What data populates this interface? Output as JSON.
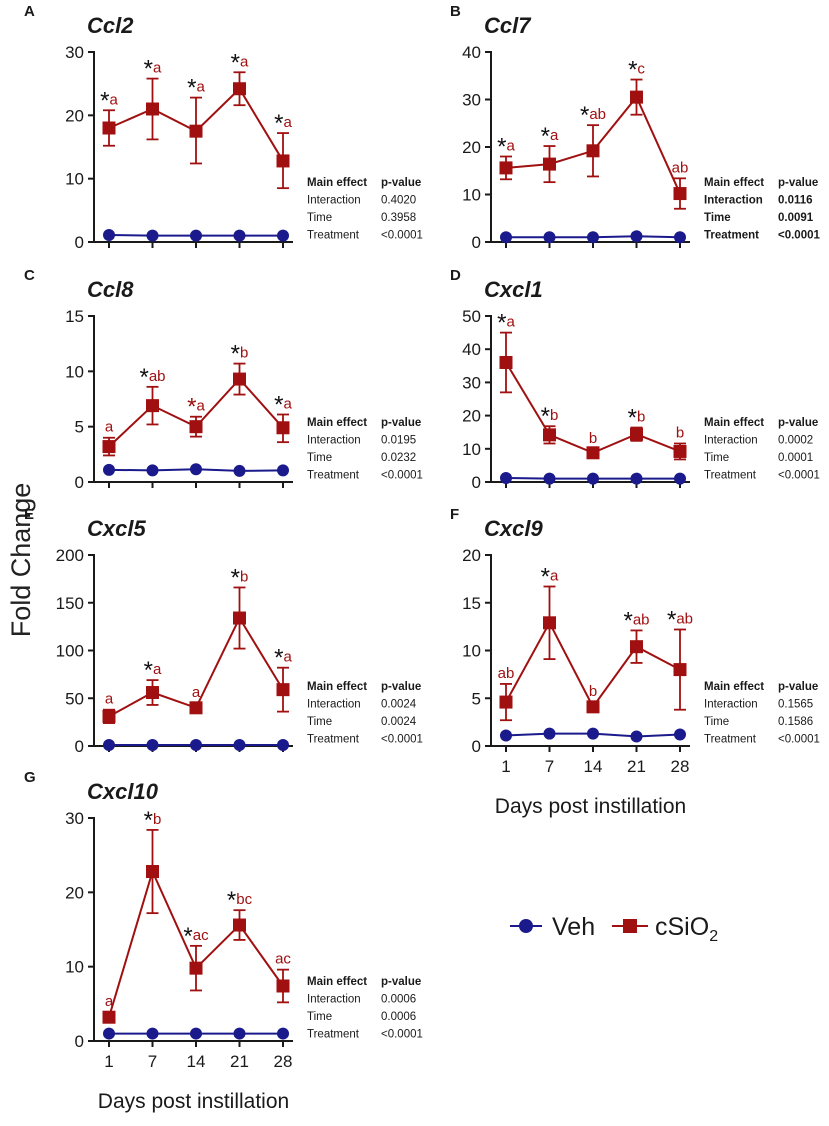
{
  "figure": {
    "ylabel": "Fold Change",
    "xlabel": "Days post instillation",
    "legend": [
      {
        "name": "Veh",
        "color": "#1a1a8c",
        "marker": "circle"
      },
      {
        "name": "cSiO",
        "subscript": "2",
        "color": "#a01010",
        "marker": "square"
      }
    ],
    "table_header": {
      "col1": "Main effect",
      "col2": "p-value"
    }
  },
  "chart_data": [
    {
      "type": "line",
      "panel": "A",
      "title": "Ccl2",
      "x": [
        1,
        7,
        14,
        21,
        28
      ],
      "xticks": [
        "1",
        "7",
        "14",
        "21",
        "28"
      ],
      "ylim": [
        0,
        30
      ],
      "yticks": [
        0,
        10,
        20,
        30
      ],
      "xlabel": "",
      "series": [
        {
          "name": "Veh",
          "color": "#1a1a8c",
          "marker": "circle",
          "values": [
            1.1,
            1.0,
            1.0,
            1.0,
            1.0
          ]
        },
        {
          "name": "cSiO2",
          "color": "#a01010",
          "marker": "square",
          "values": [
            18,
            21,
            17.5,
            24.2,
            12.8
          ],
          "err_hi": [
            20.8,
            25.8,
            22.8,
            26.8,
            17.2
          ],
          "err_lo": [
            15.2,
            16.2,
            12.4,
            21.6,
            8.5
          ]
        }
      ],
      "annotations": [
        {
          "star": true,
          "letters": "a"
        },
        {
          "star": true,
          "letters": "a"
        },
        {
          "star": true,
          "letters": "a"
        },
        {
          "star": true,
          "letters": "a"
        },
        {
          "star": true,
          "letters": "a"
        }
      ],
      "stats": [
        {
          "effect": "Interaction",
          "p": "0.4020",
          "bold": false
        },
        {
          "effect": "Time",
          "p": "0.3958",
          "bold": false
        },
        {
          "effect": "Treatment",
          "p": "<0.0001",
          "bold": false
        }
      ]
    },
    {
      "type": "line",
      "panel": "B",
      "title": "Ccl7",
      "x": [
        1,
        7,
        14,
        21,
        28
      ],
      "xticks": [
        "1",
        "7",
        "14",
        "21",
        "28"
      ],
      "ylim": [
        0,
        40
      ],
      "yticks": [
        0,
        10,
        20,
        30,
        40
      ],
      "xlabel": "",
      "series": [
        {
          "name": "Veh",
          "color": "#1a1a8c",
          "marker": "circle",
          "values": [
            1.0,
            1.0,
            1.0,
            1.2,
            1.0
          ]
        },
        {
          "name": "cSiO2",
          "color": "#a01010",
          "marker": "square",
          "values": [
            15.6,
            16.4,
            19.2,
            30.5,
            10.2
          ],
          "err_hi": [
            18.0,
            20.2,
            24.6,
            34.2,
            13.4
          ],
          "err_lo": [
            13.2,
            12.6,
            13.8,
            26.8,
            7.0
          ]
        }
      ],
      "annotations": [
        {
          "star": true,
          "letters": "a"
        },
        {
          "star": true,
          "letters": "a"
        },
        {
          "star": true,
          "letters": "ab"
        },
        {
          "star": true,
          "letters": "c"
        },
        {
          "star": false,
          "letters": "ab"
        }
      ],
      "stats": [
        {
          "effect": "Interaction",
          "p": "0.0116",
          "bold": true
        },
        {
          "effect": "Time",
          "p": "0.0091",
          "bold": true
        },
        {
          "effect": "Treatment",
          "p": "<0.0001",
          "bold": true
        }
      ]
    },
    {
      "type": "line",
      "panel": "C",
      "title": "Ccl8",
      "x": [
        1,
        7,
        14,
        21,
        28
      ],
      "xticks": [
        "1",
        "7",
        "14",
        "21",
        "28"
      ],
      "ylim": [
        0,
        15
      ],
      "yticks": [
        0,
        5,
        10,
        15
      ],
      "xlabel": "",
      "series": [
        {
          "name": "Veh",
          "color": "#1a1a8c",
          "marker": "circle",
          "values": [
            1.1,
            1.05,
            1.15,
            1.0,
            1.05
          ]
        },
        {
          "name": "cSiO2",
          "color": "#a01010",
          "marker": "square",
          "values": [
            3.2,
            6.9,
            5.0,
            9.3,
            4.9
          ],
          "err_hi": [
            4.0,
            8.6,
            5.9,
            10.7,
            6.1
          ],
          "err_lo": [
            2.4,
            5.2,
            4.1,
            7.9,
            3.6
          ]
        }
      ],
      "annotations": [
        {
          "star": false,
          "letters": "a"
        },
        {
          "star": true,
          "letters": "ab"
        },
        {
          "star": true,
          "letters": "a",
          "star_color": "red"
        },
        {
          "star": true,
          "letters": "b"
        },
        {
          "star": true,
          "letters": "a"
        }
      ],
      "stats": [
        {
          "effect": "Interaction",
          "p": "0.0195",
          "bold": false
        },
        {
          "effect": "Time",
          "p": "0.0232",
          "bold": false
        },
        {
          "effect": "Treatment",
          "p": "<0.0001",
          "bold": false
        }
      ]
    },
    {
      "type": "line",
      "panel": "D",
      "title": "Cxcl1",
      "x": [
        1,
        7,
        14,
        21,
        28
      ],
      "xticks": [
        "1",
        "7",
        "14",
        "21",
        "28"
      ],
      "ylim": [
        0,
        50
      ],
      "yticks": [
        0,
        10,
        20,
        30,
        40,
        50
      ],
      "xlabel": "",
      "series": [
        {
          "name": "Veh",
          "color": "#1a1a8c",
          "marker": "circle",
          "values": [
            1.2,
            1.0,
            1.0,
            1.0,
            1.0
          ]
        },
        {
          "name": "cSiO2",
          "color": "#a01010",
          "marker": "square",
          "values": [
            36,
            14.2,
            8.8,
            14.4,
            9.2
          ],
          "err_hi": [
            45,
            16.8,
            10.0,
            16.4,
            11.6
          ],
          "err_lo": [
            27,
            11.6,
            7.6,
            12.4,
            6.8
          ]
        }
      ],
      "annotations": [
        {
          "star": true,
          "letters": "a"
        },
        {
          "star": true,
          "letters": "b"
        },
        {
          "star": false,
          "letters": "b"
        },
        {
          "star": true,
          "letters": "b"
        },
        {
          "star": false,
          "letters": "b"
        }
      ],
      "stats": [
        {
          "effect": "Interaction",
          "p": "0.0002",
          "bold": false
        },
        {
          "effect": "Time",
          "p": "0.0001",
          "bold": false
        },
        {
          "effect": "Treatment",
          "p": "<0.0001",
          "bold": false
        }
      ]
    },
    {
      "type": "line",
      "panel": "E",
      "title": "Cxcl5",
      "x": [
        1,
        7,
        14,
        21,
        28
      ],
      "xticks": [
        "1",
        "7",
        "14",
        "21",
        "28"
      ],
      "ylim": [
        0,
        200
      ],
      "yticks": [
        0,
        50,
        100,
        150,
        200
      ],
      "xlabel": "",
      "series": [
        {
          "name": "Veh",
          "color": "#1a1a8c",
          "marker": "circle",
          "values": [
            1,
            1,
            1,
            1,
            1
          ]
        },
        {
          "name": "cSiO2",
          "color": "#a01010",
          "marker": "square",
          "values": [
            31,
            56,
            40,
            134,
            59
          ],
          "err_hi": [
            38,
            69,
            45,
            166,
            82
          ],
          "err_lo": [
            24,
            43,
            35,
            102,
            36
          ]
        }
      ],
      "annotations": [
        {
          "star": false,
          "letters": "a"
        },
        {
          "star": true,
          "letters": "a"
        },
        {
          "star": false,
          "letters": "a"
        },
        {
          "star": true,
          "letters": "b"
        },
        {
          "star": true,
          "letters": "a"
        }
      ],
      "stats": [
        {
          "effect": "Interaction",
          "p": "0.0024",
          "bold": false
        },
        {
          "effect": "Time",
          "p": "0.0024",
          "bold": false
        },
        {
          "effect": "Treatment",
          "p": "<0.0001",
          "bold": false
        }
      ]
    },
    {
      "type": "line",
      "panel": "F",
      "title": "Cxcl9",
      "x": [
        1,
        7,
        14,
        21,
        28
      ],
      "xticks": [
        "1",
        "7",
        "14",
        "21",
        "28"
      ],
      "ylim": [
        0,
        20
      ],
      "yticks": [
        0,
        5,
        10,
        15,
        20
      ],
      "xlabel": "Days post instillation",
      "series": [
        {
          "name": "Veh",
          "color": "#1a1a8c",
          "marker": "circle",
          "values": [
            1.1,
            1.3,
            1.3,
            1.0,
            1.2
          ]
        },
        {
          "name": "cSiO2",
          "color": "#a01010",
          "marker": "square",
          "values": [
            4.6,
            12.9,
            4.1,
            10.4,
            8.0
          ],
          "err_hi": [
            6.5,
            16.7,
            4.6,
            12.1,
            12.2
          ],
          "err_lo": [
            2.7,
            9.1,
            3.6,
            8.7,
            3.8
          ]
        }
      ],
      "annotations": [
        {
          "star": false,
          "letters": "ab"
        },
        {
          "star": true,
          "letters": "a"
        },
        {
          "star": false,
          "letters": "b"
        },
        {
          "star": true,
          "letters": "ab"
        },
        {
          "star": true,
          "letters": "ab"
        }
      ],
      "stats": [
        {
          "effect": "Interaction",
          "p": "0.1565",
          "bold": false
        },
        {
          "effect": "Time",
          "p": "0.1586",
          "bold": false
        },
        {
          "effect": "Treatment",
          "p": "<0.0001",
          "bold": false
        }
      ]
    },
    {
      "type": "line",
      "panel": "G",
      "title": "Cxcl10",
      "x": [
        1,
        7,
        14,
        21,
        28
      ],
      "xticks": [
        "1",
        "7",
        "14",
        "21",
        "28"
      ],
      "ylim": [
        0,
        30
      ],
      "yticks": [
        0,
        10,
        20,
        30
      ],
      "xlabel": "Days post instillation",
      "series": [
        {
          "name": "Veh",
          "color": "#1a1a8c",
          "marker": "circle",
          "values": [
            1.0,
            1.0,
            1.0,
            1.0,
            1.0
          ]
        },
        {
          "name": "cSiO2",
          "color": "#a01010",
          "marker": "square",
          "values": [
            3.2,
            22.8,
            9.8,
            15.6,
            7.4
          ],
          "err_hi": [
            3.9,
            28.4,
            12.8,
            17.6,
            9.6
          ],
          "err_lo": [
            2.5,
            17.2,
            6.8,
            13.6,
            5.2
          ]
        }
      ],
      "annotations": [
        {
          "star": false,
          "letters": "a"
        },
        {
          "star": true,
          "letters": "b"
        },
        {
          "star": true,
          "letters": "ac"
        },
        {
          "star": true,
          "letters": "bc"
        },
        {
          "star": false,
          "letters": "ac"
        }
      ],
      "stats": [
        {
          "effect": "Interaction",
          "p": "0.0006",
          "bold": false
        },
        {
          "effect": "Time",
          "p": "0.0006",
          "bold": false
        },
        {
          "effect": "Treatment",
          "p": "<0.0001",
          "bold": false
        }
      ]
    }
  ]
}
